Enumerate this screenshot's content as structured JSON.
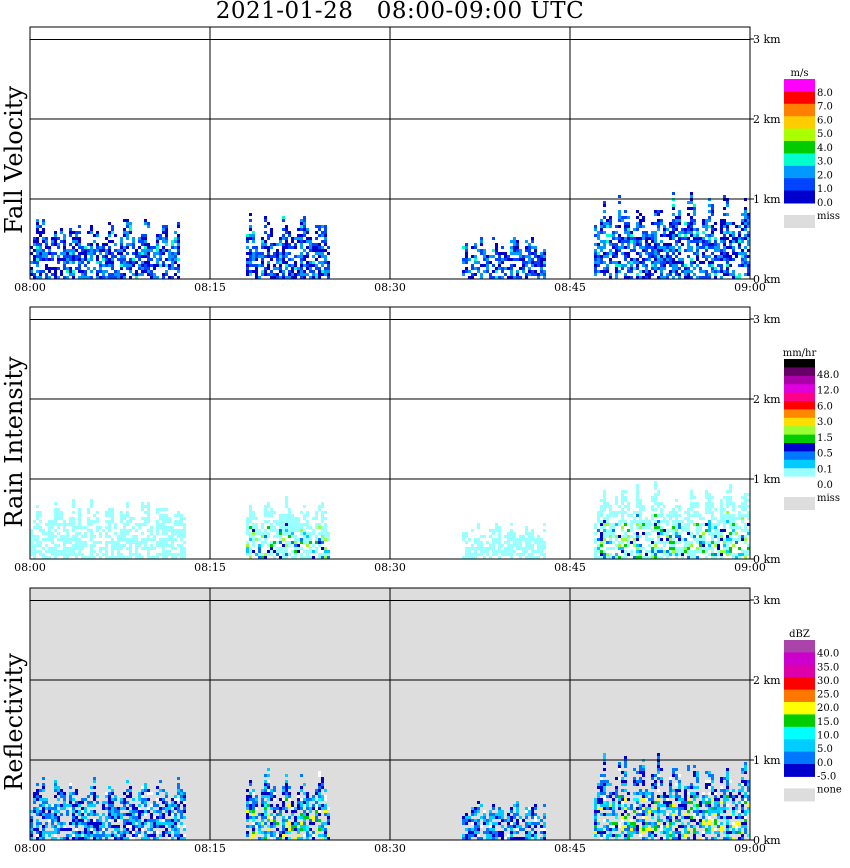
{
  "title": "2021-01-28   08:00-09:00 UTC",
  "time_ticks": [
    "08:00",
    "08:15",
    "08:30",
    "08:45",
    "09:00"
  ],
  "height_ticks": [
    "0 km",
    "1 km",
    "2 km",
    "3 km"
  ],
  "chart_data": [
    {
      "type": "heatmap",
      "panel": "Fall Velocity",
      "xlabel": "",
      "ylabel": "Fall Velocity",
      "xlim": [
        "08:00",
        "09:00"
      ],
      "ylim_km": [
        0,
        3.2
      ],
      "grid": true,
      "colorbar": {
        "unit": "m/s",
        "labels": [
          "8.0",
          "7.0",
          "6.0",
          "5.0",
          "4.0",
          "3.0",
          "2.0",
          "1.0",
          "0.0"
        ],
        "colors": [
          "#ff00ff",
          "#ff0000",
          "#ff7f00",
          "#ffcc00",
          "#aaff00",
          "#00cc00",
          "#00ffcc",
          "#0099ff",
          "#0044ff",
          "#0000cc"
        ],
        "missing_label": "miss",
        "missing_color": "#dddddd"
      },
      "echo_regions": [
        {
          "start_min": 0,
          "end_min": 12.5,
          "top_km": 0.8,
          "dominant": "1.0-2.0 m/s"
        },
        {
          "start_min": 18,
          "end_min": 25,
          "top_km": 0.85,
          "dominant": "1.0-2.0 m/s"
        },
        {
          "start_min": 36,
          "end_min": 43,
          "top_km": 0.55,
          "dominant": "1.0-2.0 m/s"
        },
        {
          "start_min": 47,
          "end_min": 60,
          "top_km": 1.1,
          "dominant": "1.0-2.0 m/s"
        }
      ]
    },
    {
      "type": "heatmap",
      "panel": "Rain Intensity",
      "xlabel": "",
      "ylabel": "Rain Intensity",
      "xlim": [
        "08:00",
        "09:00"
      ],
      "ylim_km": [
        0,
        3.2
      ],
      "grid": true,
      "colorbar": {
        "unit": "mm/hr",
        "labels": [
          "48.0",
          "12.0",
          "6.0",
          "3.0",
          "1.5",
          "0.5",
          "0.1",
          "0.0"
        ],
        "colors": [
          "#000000",
          "#660066",
          "#aa00aa",
          "#dd00dd",
          "#ff0088",
          "#ff0000",
          "#ff8800",
          "#ffdd00",
          "#99ff33",
          "#00cc00",
          "#0000cc",
          "#0077ff",
          "#00ccff",
          "#99ffff",
          "#ffffff"
        ],
        "missing_label": "miss",
        "missing_color": "#dddddd"
      },
      "echo_regions": [
        {
          "start_min": 0,
          "end_min": 13,
          "top_km": 0.8,
          "dominant": "0.1 mm/hr"
        },
        {
          "start_min": 18,
          "end_min": 25,
          "top_km": 0.8,
          "dominant": "1.5-3.0 mm/hr core"
        },
        {
          "start_min": 36,
          "end_min": 43,
          "top_km": 0.5,
          "dominant": "0.1 mm/hr"
        },
        {
          "start_min": 47,
          "end_min": 60,
          "top_km": 1.0,
          "dominant": "0.5-1.5 mm/hr"
        }
      ]
    },
    {
      "type": "heatmap",
      "panel": "Reflectivity",
      "xlabel": "",
      "ylabel": "Reflectivity",
      "xlim": [
        "08:00",
        "09:00"
      ],
      "ylim_km": [
        0,
        3.2
      ],
      "grid": true,
      "colorbar": {
        "unit": "dBZ",
        "labels": [
          "40.0",
          "35.0",
          "30.0",
          "25.0",
          "20.0",
          "15.0",
          "10.0",
          "5.0",
          "0.0",
          "-5.0"
        ],
        "colors": [
          "#aa44aa",
          "#cc00cc",
          "#dd00aa",
          "#ff0000",
          "#ff7700",
          "#ffff00",
          "#00cc00",
          "#00ffff",
          "#00ccff",
          "#0077ff",
          "#0000cc"
        ],
        "missing_label": "none",
        "missing_color": "#dddddd"
      },
      "echo_regions": [
        {
          "start_min": 0,
          "end_min": 13,
          "top_km": 0.85,
          "dominant": "5-10 dBZ"
        },
        {
          "start_min": 18,
          "end_min": 25,
          "top_km": 0.9,
          "dominant": "15-20 dBZ core"
        },
        {
          "start_min": 36,
          "end_min": 43,
          "top_km": 0.55,
          "dominant": "5 dBZ"
        },
        {
          "start_min": 47,
          "end_min": 60,
          "top_km": 1.1,
          "dominant": "10-15 dBZ"
        }
      ]
    }
  ]
}
